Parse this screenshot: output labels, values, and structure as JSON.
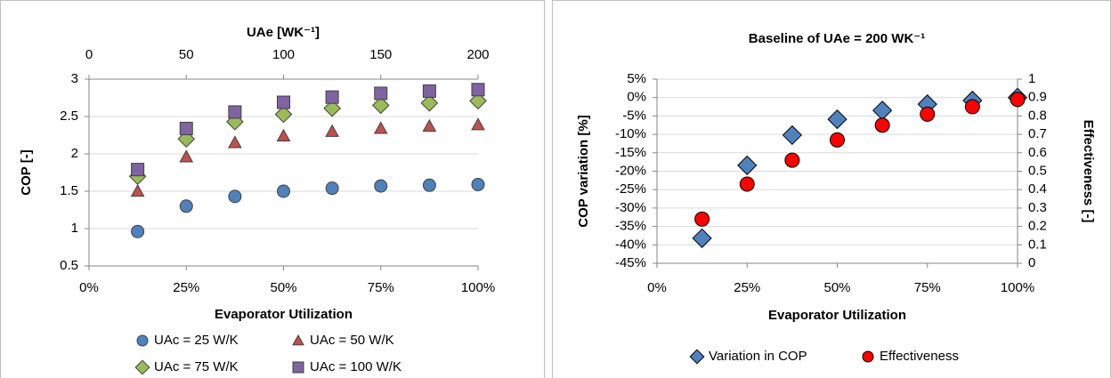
{
  "chart_data": [
    {
      "type": "scatter",
      "title": "UAe [WK⁻¹]",
      "x_label": "Evaporator Utilization",
      "y_label": "COP [-]",
      "x": [
        12.5,
        25,
        37.5,
        50,
        62.5,
        75,
        87.5,
        100
      ],
      "xlim": [
        0,
        100
      ],
      "xticks": [
        {
          "value": 0,
          "label": "0%"
        },
        {
          "value": 25,
          "label": "25%"
        },
        {
          "value": 50,
          "label": "50%"
        },
        {
          "value": 75,
          "label": "75%"
        },
        {
          "value": 100,
          "label": "100%"
        }
      ],
      "x2lim": [
        0,
        200
      ],
      "x2ticks": [
        0,
        50,
        100,
        150,
        200
      ],
      "ylim": [
        0.5,
        3
      ],
      "yticks": [
        0.5,
        1,
        1.5,
        2,
        2.5,
        3
      ],
      "grid": true,
      "series": [
        {
          "name": "UAc = 25 W/K",
          "color": "#4f81bd",
          "marker": "circle",
          "values": [
            0.96,
            1.3,
            1.43,
            1.5,
            1.54,
            1.57,
            1.58,
            1.59
          ]
        },
        {
          "name": "UAc = 50 W/K",
          "color": "#c0504d",
          "marker": "triangle",
          "values": [
            1.5,
            1.96,
            2.15,
            2.24,
            2.3,
            2.34,
            2.37,
            2.39
          ]
        },
        {
          "name": "UAc = 75 W/K",
          "color": "#9bbb59",
          "marker": "diamond",
          "values": [
            1.7,
            2.2,
            2.43,
            2.53,
            2.61,
            2.65,
            2.68,
            2.71
          ]
        },
        {
          "name": "UAc = 100 W/K",
          "color": "#8064a2",
          "marker": "square",
          "values": [
            1.79,
            2.34,
            2.56,
            2.69,
            2.76,
            2.81,
            2.84,
            2.86
          ]
        }
      ]
    },
    {
      "type": "scatter",
      "title": "Baseline of UAe = 200 WK⁻¹",
      "x_label": "Evaporator Utilization",
      "y_label": "COP variation [%]",
      "y2_label": "Effectiveness [-]",
      "x": [
        12.5,
        25,
        37.5,
        50,
        62.5,
        75,
        87.5,
        100
      ],
      "xlim": [
        0,
        100
      ],
      "xticks": [
        {
          "value": 0,
          "label": "0%"
        },
        {
          "value": 25,
          "label": "25%"
        },
        {
          "value": 50,
          "label": "50%"
        },
        {
          "value": 75,
          "label": "75%"
        },
        {
          "value": 100,
          "label": "100%"
        }
      ],
      "ylim": [
        -45,
        5
      ],
      "yticks": [
        {
          "value": -45,
          "label": "-45%"
        },
        {
          "value": -40,
          "label": "-40%"
        },
        {
          "value": -35,
          "label": "-35%"
        },
        {
          "value": -30,
          "label": "-30%"
        },
        {
          "value": -25,
          "label": "-25%"
        },
        {
          "value": -20,
          "label": "-20%"
        },
        {
          "value": -15,
          "label": "-15%"
        },
        {
          "value": -10,
          "label": "-10%"
        },
        {
          "value": -5,
          "label": "-5%"
        },
        {
          "value": 0,
          "label": "0%"
        },
        {
          "value": 5,
          "label": "5%"
        }
      ],
      "y2lim": [
        0,
        1
      ],
      "y2ticks": [
        0,
        0.1,
        0.2,
        0.3,
        0.4,
        0.5,
        0.6,
        0.7,
        0.8,
        0.9,
        1
      ],
      "grid": true,
      "series": [
        {
          "name": "Variation in COP",
          "color": "#4f81bd",
          "marker": "diamond",
          "values": [
            -38.2,
            -18.4,
            -10.2,
            -5.9,
            -3.5,
            -1.8,
            -0.8,
            0
          ]
        },
        {
          "name": "Effectiveness",
          "color": "#ff0000",
          "marker": "circle",
          "axis": "y2",
          "values": [
            0.24,
            0.43,
            0.56,
            0.67,
            0.75,
            0.81,
            0.85,
            0.89
          ]
        }
      ]
    }
  ]
}
